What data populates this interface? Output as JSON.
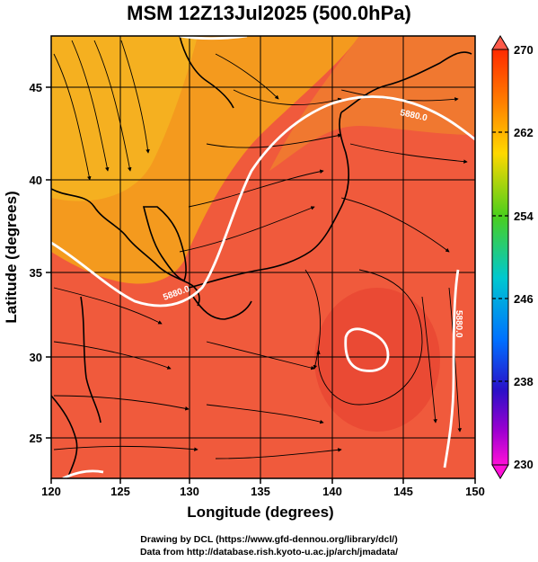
{
  "title": "MSM 12Z13Jul2025 (500.0hPa)",
  "x_axis": {
    "label": "Longitude (degrees)",
    "ticks": [
      "120",
      "125",
      "130",
      "135",
      "140",
      "145",
      "150"
    ]
  },
  "y_axis": {
    "label": "Latitude  (degrees)",
    "ticks": [
      "25",
      "30",
      "35",
      "40",
      "45"
    ]
  },
  "colorbar": {
    "ticks": [
      "270",
      "262",
      "254",
      "246",
      "238",
      "230"
    ],
    "top_value": "270",
    "bottom_value": "230"
  },
  "contour_labels": [
    "5880.0",
    "5880.0",
    "5880.0"
  ],
  "colors": {
    "background_warm": "#f05a3c",
    "north_orange": "#f49a1e",
    "contour": "#ffffff"
  },
  "credits": {
    "line1": "Drawing by DCL (https://www.gfd-dennou.org/library/dcl/)",
    "line2": "Data from http://database.rish.kyoto-u.ac.jp/arch/jmadata/"
  }
}
